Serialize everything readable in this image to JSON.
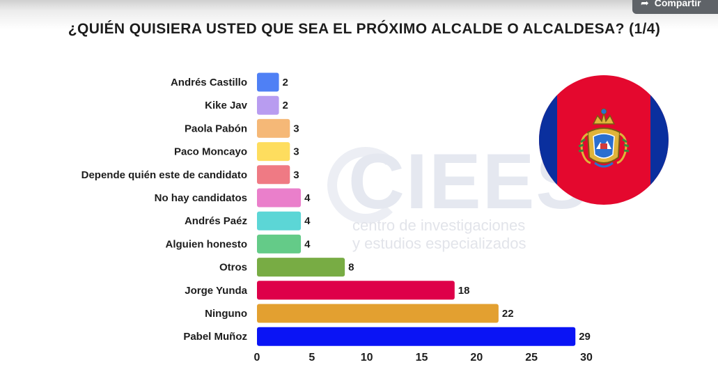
{
  "window": {
    "share_label": "Compartir",
    "share_icon": "share-arrow-icon"
  },
  "chart_data": {
    "type": "bar",
    "orientation": "horizontal",
    "title": "¿QUIÉN QUISIERA USTED QUE SEA EL PRÓXIMO ALCALDE O ALCALDESA? (1/4)",
    "categories": [
      "Andrés Castillo",
      "Kike Jav",
      "Paola Pabón",
      "Paco Moncayo",
      "Depende quién este de candidato",
      "No hay candidatos",
      "Andrés Paéz",
      "Alguien honesto",
      "Otros",
      "Jorge Yunda",
      "Ninguno",
      "Pabel Muñoz"
    ],
    "values": [
      2,
      2,
      3,
      3,
      3,
      4,
      4,
      4,
      8,
      18,
      22,
      29
    ],
    "colors": [
      "#4f80f5",
      "#b89cf0",
      "#f5b877",
      "#fedd5e",
      "#ef7a84",
      "#ea7fcb",
      "#5cd6d6",
      "#64cb88",
      "#78ac44",
      "#de0049",
      "#e3a030",
      "#0a14f5"
    ],
    "xlim": [
      0,
      30
    ],
    "xticks": [
      0,
      5,
      10,
      15,
      20,
      25,
      30
    ],
    "xlabel": "",
    "ylabel": "",
    "grid": false,
    "legend": "none"
  },
  "watermark": {
    "brand": "CIEES",
    "line1": "centro de investigaciones",
    "line2": "y estudios especializados"
  },
  "emblem": {
    "icon": "quito-flag-emblem-icon",
    "colors": {
      "red": "#e4082e",
      "blue": "#0a2f9e",
      "gold": "#e0b43a"
    }
  }
}
